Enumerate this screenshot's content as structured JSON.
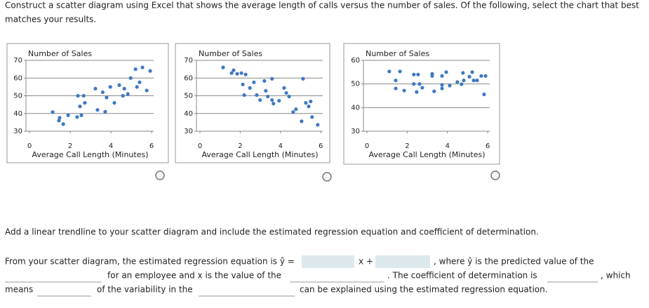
{
  "question": "Construct a scatter diagram using Excel that shows the average length of calls versus the number of sales. Of the following, select the chart that best matches your results.",
  "chart_data": [
    {
      "type": "scatter",
      "title": "Number of Sales",
      "xlabel": "Average Call Length (Minutes)",
      "color": "#3f78c3",
      "grid": true,
      "xlim": [
        0,
        6.1
      ],
      "ylim": [
        30,
        70
      ],
      "xticks": [
        0,
        2,
        4,
        6
      ],
      "yticks": [
        30,
        40,
        50,
        60,
        70
      ],
      "x": [
        1.14,
        1.48,
        1.45,
        1.66,
        1.9,
        2.34,
        2.55,
        2.38,
        2.66,
        2.48,
        2.72,
        3.24,
        3.34,
        3.6,
        3.72,
        3.79,
        3.97,
        4.17,
        4.41,
        4.59,
        4.66,
        4.83,
        4.97,
        5.21,
        5.28,
        5.41,
        5.55,
        5.76,
        5.93
      ],
      "values": [
        40.8,
        37.6,
        36,
        34,
        39,
        38,
        39,
        50,
        50,
        44,
        46,
        54,
        42,
        52,
        41,
        49,
        55,
        46,
        56,
        50,
        54,
        51,
        60,
        65,
        55,
        57.6,
        66,
        53,
        64
      ]
    },
    {
      "type": "scatter",
      "title": "Number of Sales",
      "xlabel": "Average Call Length (Minutes)",
      "color": "#3f78c3",
      "grid": true,
      "xlim": [
        0,
        6.1
      ],
      "ylim": [
        30,
        70
      ],
      "xticks": [
        0,
        2,
        4,
        6
      ],
      "yticks": [
        30,
        40,
        50,
        60,
        70
      ],
      "x": [
        1.15,
        1.57,
        1.67,
        1.85,
        2.06,
        2.27,
        2.13,
        2.48,
        2.2,
        2.68,
        2.82,
        2.99,
        3.2,
        3.27,
        3.37,
        3.58,
        3.58,
        3.65,
        3.93,
        4.18,
        4.29,
        4.43,
        4.63,
        4.77,
        5.12,
        5.05,
        5.26,
        5.4,
        5.5,
        5.57,
        5.85
      ],
      "values": [
        66,
        62.8,
        64.4,
        62.4,
        62.8,
        62,
        56.4,
        54.4,
        50.4,
        57.6,
        50.4,
        47.6,
        58.4,
        52.8,
        49.6,
        59.6,
        47.6,
        45.6,
        47.2,
        54.4,
        51.6,
        49.6,
        40.8,
        42.4,
        59.6,
        35.6,
        46,
        44,
        46.8,
        38,
        33.6
      ]
    },
    {
      "type": "scatter",
      "title": "Number of Sales",
      "xlabel": "Average Call Length (Minutes)",
      "color": "#3f78c3",
      "grid": true,
      "xlim": [
        0,
        6.1
      ],
      "ylim": [
        30,
        60
      ],
      "xticks": [
        0,
        2,
        4,
        6
      ],
      "yticks": [
        30,
        40,
        50,
        60
      ],
      "x": [
        1.11,
        1.64,
        1.43,
        1.43,
        1.85,
        2.33,
        2.54,
        2.33,
        2.61,
        2.47,
        2.75,
        3.24,
        3.24,
        3.34,
        3.73,
        3.73,
        3.73,
        3.94,
        4.11,
        4.49,
        4.7,
        4.77,
        4.81,
        5.09,
        5.23,
        5.3,
        5.47,
        5.68,
        5.89,
        5.82
      ],
      "values": [
        55.3,
        55.3,
        51.5,
        48.1,
        47.2,
        54,
        54,
        50,
        50,
        46.6,
        48.4,
        54.3,
        53.4,
        46.9,
        53.4,
        49.6,
        48.1,
        55,
        49.3,
        50.8,
        49.9,
        54.7,
        51.5,
        53.1,
        55,
        51.5,
        51.5,
        53.4,
        53.4,
        45.6
      ]
    }
  ],
  "instruction": "Add a linear trendline to your scatter diagram and include the estimated regression equation and coefficient of determination.",
  "sentence": [
    "From your scatter diagram, the estimated regression equation is ŷ =",
    "x +",
    ", where ŷ is the predicted value of the",
    "for an employee and x is the value of the",
    ". The coefficient of determination is",
    ", which",
    "means",
    "of the variability in the",
    "can be explained using the estimated regression equation."
  ]
}
